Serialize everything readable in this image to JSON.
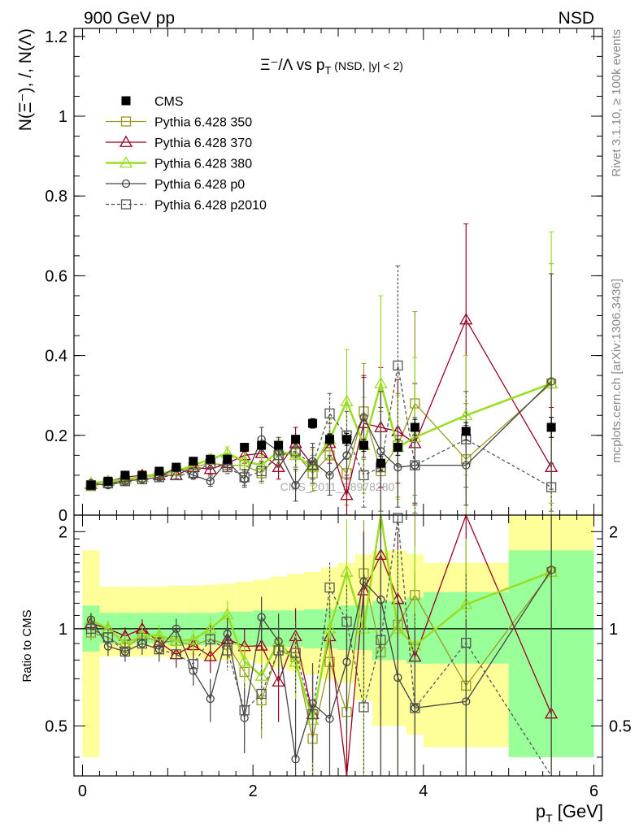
{
  "header": {
    "left": "900 GeV pp",
    "right": "NSD"
  },
  "side_text": {
    "rivet": "Rivet 3.1.10, ≥ 100k events",
    "mcplots": "mcplots.cern.ch [arXiv:1306.3436]"
  },
  "watermark": "CMS_2011_S8978280",
  "chart_data": {
    "type": "scatter",
    "title": "Ξ⁻/Λ  vs p_T (NSD, |y| < 2)",
    "xlabel": "p_T [GeV]",
    "ylabel": "N(Ξ⁻), /, N(Λ)",
    "ratio_ylabel": "Ratio to CMS",
    "xlim": [
      -0.1,
      6.1
    ],
    "ylim": [
      0,
      1.22
    ],
    "ratio_ylim": [
      0.35,
      2.25
    ],
    "x_ticks": [
      "0",
      "2",
      "4",
      "6"
    ],
    "y_ticks": [
      "0",
      "0.2",
      "0.4",
      "0.6",
      "0.8",
      "1",
      "1.2"
    ],
    "ratio_y_ticks": [
      "0.5",
      "1",
      "2"
    ],
    "x": [
      0.1,
      0.3,
      0.5,
      0.7,
      0.9,
      1.1,
      1.3,
      1.5,
      1.7,
      1.9,
      2.1,
      2.3,
      2.5,
      2.7,
      2.9,
      3.1,
      3.3,
      3.5,
      3.7,
      3.9,
      4.5,
      5.5
    ],
    "x_edges": [
      0.0,
      0.2,
      0.4,
      0.6,
      0.8,
      1.0,
      1.2,
      1.4,
      1.6,
      1.8,
      2.0,
      2.2,
      2.4,
      2.6,
      2.8,
      3.0,
      3.2,
      3.4,
      3.6,
      3.8,
      4.0,
      5.0,
      6.0
    ],
    "legend_position": "top-left",
    "series": [
      {
        "name": "CMS",
        "color": "#000000",
        "marker": "filled-square",
        "values": [
          0.075,
          0.085,
          0.1,
          0.1,
          0.11,
          0.12,
          0.135,
          0.14,
          0.14,
          0.17,
          0.175,
          0.175,
          0.19,
          0.23,
          0.19,
          0.19,
          0.175,
          0.13,
          0.17,
          0.22,
          0.21,
          0.22
        ],
        "errors": [
          0.005,
          0.005,
          0.005,
          0.005,
          0.005,
          0.006,
          0.006,
          0.007,
          0.007,
          0.008,
          0.009,
          0.01,
          0.01,
          0.012,
          0.013,
          0.015,
          0.015,
          0.018,
          0.02,
          0.02,
          0.022,
          0.025
        ]
      },
      {
        "name": "Pythia 6.428 350",
        "color": "#999922",
        "marker": "open-square",
        "line": "solid",
        "values": [
          0.073,
          0.08,
          0.087,
          0.095,
          0.1,
          0.11,
          0.12,
          0.13,
          0.125,
          0.125,
          0.105,
          0.15,
          0.155,
          0.105,
          0.15,
          0.105,
          0.26,
          0.11,
          0.175,
          0.28,
          0.14,
          0.33
        ],
        "errors": [
          0.004,
          0.004,
          0.005,
          0.006,
          0.007,
          0.008,
          0.01,
          0.012,
          0.016,
          0.02,
          0.025,
          0.03,
          0.04,
          0.045,
          0.05,
          0.08,
          0.12,
          0.15,
          0.13,
          0.23,
          0.14,
          0.3
        ]
      },
      {
        "name": "Pythia 6.428 370",
        "color": "#990022",
        "marker": "open-triangle",
        "line": "solid",
        "values": [
          0.078,
          0.085,
          0.095,
          0.1,
          0.1,
          0.1,
          0.12,
          0.115,
          0.13,
          0.15,
          0.155,
          0.12,
          0.18,
          0.125,
          0.18,
          0.05,
          0.23,
          0.22,
          0.21,
          0.18,
          0.49,
          0.12
        ],
        "errors": [
          0.004,
          0.005,
          0.006,
          0.007,
          0.008,
          0.009,
          0.01,
          0.013,
          0.016,
          0.02,
          0.025,
          0.03,
          0.04,
          0.045,
          0.05,
          0.05,
          0.12,
          0.15,
          0.13,
          0.15,
          0.24,
          0.15
        ]
      },
      {
        "name": "Pythia 6.428 380",
        "color": "#99dd22",
        "marker": "open-triangle",
        "line": "solid",
        "values": [
          0.08,
          0.085,
          0.09,
          0.095,
          0.105,
          0.11,
          0.125,
          0.14,
          0.155,
          0.135,
          0.125,
          0.16,
          0.15,
          0.12,
          0.19,
          0.285,
          0.175,
          0.33,
          0.17,
          0.195,
          0.25,
          0.33
        ],
        "errors": [
          0.004,
          0.005,
          0.006,
          0.007,
          0.008,
          0.009,
          0.01,
          0.013,
          0.016,
          0.02,
          0.025,
          0.03,
          0.04,
          0.045,
          0.05,
          0.13,
          0.12,
          0.22,
          0.13,
          0.2,
          0.15,
          0.38
        ]
      },
      {
        "name": "Pythia 6.428 p0",
        "color": "#444444",
        "marker": "open-circle",
        "line": "solid",
        "values": [
          0.08,
          0.075,
          0.085,
          0.09,
          0.095,
          0.12,
          0.1,
          0.085,
          0.135,
          0.09,
          0.19,
          0.16,
          0.075,
          0.135,
          0.1,
          0.15,
          0.245,
          0.16,
          0.12,
          0.125,
          0.125,
          0.335
        ],
        "errors": [
          0.004,
          0.005,
          0.006,
          0.007,
          0.008,
          0.009,
          0.01,
          0.013,
          0.016,
          0.02,
          0.03,
          0.035,
          0.04,
          0.045,
          0.05,
          0.06,
          0.1,
          0.15,
          0.1,
          0.1,
          0.1,
          0.27
        ]
      },
      {
        "name": "Pythia 6.428 p2010",
        "color": "#555555",
        "marker": "open-square",
        "line": "dashed",
        "values": [
          0.075,
          0.08,
          0.085,
          0.09,
          0.095,
          0.1,
          0.105,
          0.13,
          0.12,
          0.095,
          0.11,
          0.15,
          0.16,
          0.125,
          0.255,
          0.2,
          0.1,
          0.12,
          0.375,
          0.125,
          0.19,
          0.07
        ],
        "errors": [
          0.004,
          0.005,
          0.006,
          0.007,
          0.008,
          0.009,
          0.01,
          0.013,
          0.016,
          0.02,
          0.025,
          0.03,
          0.04,
          0.045,
          0.05,
          0.06,
          0.08,
          0.15,
          0.25,
          0.12,
          0.12,
          0.06
        ]
      }
    ],
    "ratio_band": {
      "stat": [
        [
          0.85,
          1.18
        ],
        [
          0.9,
          1.12
        ],
        [
          0.9,
          1.12
        ],
        [
          0.9,
          1.12
        ],
        [
          0.9,
          1.12
        ],
        [
          0.89,
          1.12
        ],
        [
          0.89,
          1.12
        ],
        [
          0.89,
          1.12
        ],
        [
          0.89,
          1.13
        ],
        [
          0.89,
          1.13
        ],
        [
          0.88,
          1.14
        ],
        [
          0.88,
          1.14
        ],
        [
          0.88,
          1.14
        ],
        [
          0.87,
          1.15
        ],
        [
          0.87,
          1.15
        ],
        [
          0.86,
          1.18
        ],
        [
          0.86,
          1.18
        ],
        [
          0.8,
          1.22
        ],
        [
          0.8,
          1.22
        ],
        [
          0.78,
          1.25
        ],
        [
          0.78,
          1.3
        ],
        [
          0.4,
          1.75
        ]
      ],
      "total": [
        [
          0.4,
          1.75
        ],
        [
          0.82,
          1.35
        ],
        [
          0.82,
          1.35
        ],
        [
          0.82,
          1.35
        ],
        [
          0.82,
          1.35
        ],
        [
          0.81,
          1.36
        ],
        [
          0.81,
          1.36
        ],
        [
          0.8,
          1.37
        ],
        [
          0.8,
          1.38
        ],
        [
          0.8,
          1.4
        ],
        [
          0.78,
          1.42
        ],
        [
          0.76,
          1.45
        ],
        [
          0.74,
          1.48
        ],
        [
          0.72,
          1.5
        ],
        [
          0.7,
          1.55
        ],
        [
          0.68,
          1.6
        ],
        [
          0.6,
          1.7
        ],
        [
          0.5,
          1.75
        ],
        [
          0.5,
          1.75
        ],
        [
          0.47,
          1.7
        ],
        [
          0.43,
          1.6
        ],
        [
          0.4,
          2.3
        ]
      ]
    }
  }
}
